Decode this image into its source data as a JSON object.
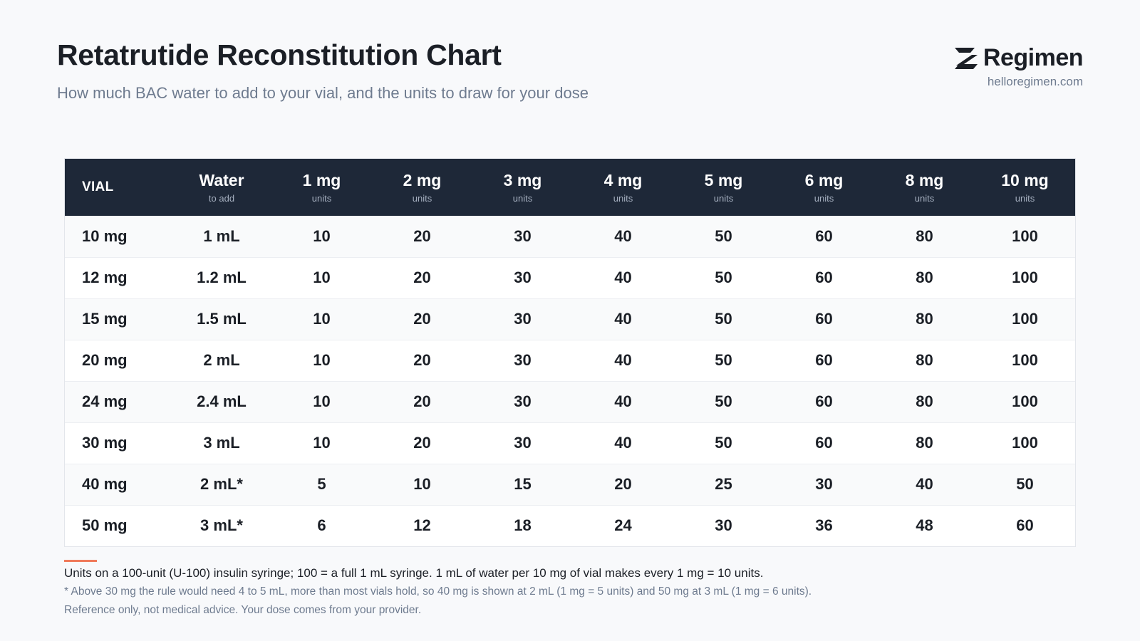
{
  "header": {
    "title": "Retatrutide Reconstitution Chart",
    "subtitle": "How much BAC water to add to your vial, and the units to draw for your dose"
  },
  "brand": {
    "name": "Regimen",
    "url": "helloregimen.com",
    "logo_icon": "regimen-logo-icon",
    "color": "#1b1f26"
  },
  "colors": {
    "header_bg": "#1e2838",
    "accent": "#f07a5b"
  },
  "table": {
    "columns": [
      {
        "label": "VIAL",
        "sub": ""
      },
      {
        "label": "Water",
        "sub": "to add"
      },
      {
        "label": "1 mg",
        "sub": "units"
      },
      {
        "label": "2 mg",
        "sub": "units"
      },
      {
        "label": "3 mg",
        "sub": "units"
      },
      {
        "label": "4 mg",
        "sub": "units"
      },
      {
        "label": "5 mg",
        "sub": "units"
      },
      {
        "label": "6 mg",
        "sub": "units"
      },
      {
        "label": "8 mg",
        "sub": "units"
      },
      {
        "label": "10 mg",
        "sub": "units"
      }
    ],
    "rows": [
      [
        "10 mg",
        "1 mL",
        "10",
        "20",
        "30",
        "40",
        "50",
        "60",
        "80",
        "100"
      ],
      [
        "12 mg",
        "1.2 mL",
        "10",
        "20",
        "30",
        "40",
        "50",
        "60",
        "80",
        "100"
      ],
      [
        "15 mg",
        "1.5 mL",
        "10",
        "20",
        "30",
        "40",
        "50",
        "60",
        "80",
        "100"
      ],
      [
        "20 mg",
        "2 mL",
        "10",
        "20",
        "30",
        "40",
        "50",
        "60",
        "80",
        "100"
      ],
      [
        "24 mg",
        "2.4 mL",
        "10",
        "20",
        "30",
        "40",
        "50",
        "60",
        "80",
        "100"
      ],
      [
        "30 mg",
        "3 mL",
        "10",
        "20",
        "30",
        "40",
        "50",
        "60",
        "80",
        "100"
      ],
      [
        "40 mg",
        "2 mL*",
        "5",
        "10",
        "15",
        "20",
        "25",
        "30",
        "40",
        "50"
      ],
      [
        "50 mg",
        "3 mL*",
        "6",
        "12",
        "18",
        "24",
        "30",
        "36",
        "48",
        "60"
      ]
    ]
  },
  "notes": {
    "main": "Units on a 100-unit (U-100) insulin syringe; 100 = a full 1 mL syringe. 1 mL of water per 10 mg of vial makes every 1 mg = 10 units.",
    "footnote": "* Above 30 mg the rule would need 4 to 5 mL, more than most vials hold, so 40 mg is shown at 2 mL (1 mg = 5 units) and 50 mg at 3 mL (1 mg = 6 units).",
    "disclaimer": "Reference only, not medical advice. Your dose comes from your provider."
  }
}
